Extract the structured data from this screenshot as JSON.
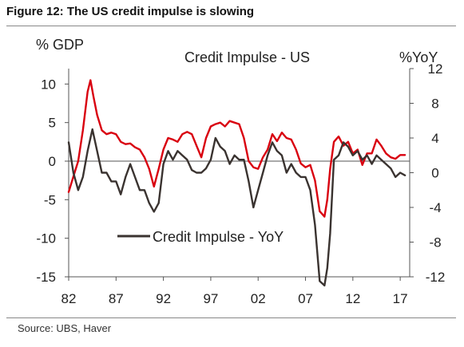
{
  "figure_title": "Figure 12: The US credit impulse is slowing",
  "source": "Source:  UBS, Haver",
  "colors": {
    "red_series": "#d9000f",
    "black_series": "#3a3330",
    "axis": "#555555",
    "rule": "#888888"
  },
  "chart_data": {
    "type": "line",
    "title": "Credit Impulse - US",
    "ylabel_left": "% GDP",
    "ylabel_right": "%YoY",
    "grid": false,
    "legend_placement": "bottom-center",
    "x_axis": {
      "range": [
        1982,
        2018
      ],
      "ticks": [
        1982,
        1987,
        1992,
        1997,
        2002,
        2007,
        2012,
        2017
      ],
      "tick_labels": [
        "82",
        "87",
        "92",
        "97",
        "02",
        "07",
        "12",
        "17"
      ]
    },
    "y_left": {
      "range": [
        -15,
        12
      ],
      "ticks": [
        10,
        5,
        0,
        -5,
        -10,
        -15
      ],
      "tick_labels": [
        "10",
        "5",
        "0",
        "-5",
        "-10",
        "-15"
      ]
    },
    "y_right": {
      "range": [
        -12,
        12
      ],
      "ticks": [
        12,
        8,
        4,
        0,
        -4,
        -8,
        -12
      ],
      "tick_labels": [
        "12",
        "8",
        "4",
        "0",
        "-4",
        "-8",
        "-12"
      ]
    },
    "series": [
      {
        "name": "",
        "axis": "left",
        "color": "#d9000f",
        "x": [
          1982,
          1982.5,
          1983,
          1983.5,
          1984,
          1984.3,
          1984.6,
          1985,
          1985.5,
          1986,
          1986.5,
          1987,
          1987.5,
          1988,
          1988.5,
          1989,
          1989.5,
          1990,
          1990.5,
          1991,
          1991.5,
          1992,
          1992.5,
          1993,
          1993.5,
          1994,
          1994.5,
          1995,
          1995.5,
          1996,
          1996.5,
          1997,
          1997.5,
          1998,
          1998.5,
          1999,
          1999.5,
          2000,
          2000.5,
          2001,
          2001.5,
          2002,
          2002.5,
          2003,
          2003.5,
          2004,
          2004.5,
          2005,
          2005.5,
          2006,
          2006.5,
          2007,
          2007.5,
          2008,
          2008.5,
          2009,
          2009.3,
          2009.6,
          2010,
          2010.5,
          2011,
          2011.5,
          2012,
          2012.5,
          2013,
          2013.5,
          2014,
          2014.5,
          2015,
          2015.5,
          2016,
          2016.5,
          2017,
          2017.5
        ],
        "values": [
          -4,
          -2,
          0,
          4,
          9,
          10.5,
          8.5,
          6,
          4,
          3.5,
          3.7,
          3.5,
          2.5,
          2.2,
          2.3,
          1.8,
          1.5,
          0.5,
          -1,
          -3.3,
          -1,
          1.5,
          3,
          2.8,
          2.5,
          3.5,
          3.8,
          3.5,
          2.0,
          0.5,
          3,
          4.5,
          4.8,
          5,
          4.5,
          5.2,
          5,
          4.8,
          3.0,
          0,
          -0.8,
          -1,
          0.5,
          1.5,
          3.5,
          2.6,
          3.7,
          3.0,
          2.8,
          1.5,
          -0.3,
          -0.8,
          -0.5,
          -2.5,
          -6.5,
          -7.2,
          -5,
          -1,
          2.5,
          3.2,
          2,
          2.5,
          1.0,
          1.5,
          -0.5,
          1.0,
          1.0,
          2.8,
          2.0,
          1.0,
          0.5,
          0.3,
          0.8,
          0.8
        ]
      },
      {
        "name": "Credit Impulse - YoY",
        "axis": "right",
        "color": "#3a3330",
        "x": [
          1982,
          1982.5,
          1983,
          1983.5,
          1984,
          1984.5,
          1985,
          1985.5,
          1986,
          1986.5,
          1987,
          1987.5,
          1988,
          1988.5,
          1989,
          1989.5,
          1990,
          1990.5,
          1991,
          1991.5,
          1992,
          1992.5,
          1993,
          1993.5,
          1994,
          1994.5,
          1995,
          1995.5,
          1996,
          1996.5,
          1997,
          1997.5,
          1998,
          1998.5,
          1999,
          1999.5,
          2000,
          2000.5,
          2001,
          2001.5,
          2002,
          2002.5,
          2003,
          2003.5,
          2004,
          2004.5,
          2005,
          2005.5,
          2006,
          2006.5,
          2007,
          2007.5,
          2008,
          2008.5,
          2009,
          2009.3,
          2009.6,
          2010,
          2010.5,
          2011,
          2011.5,
          2012,
          2012.5,
          2013,
          2013.5,
          2014,
          2014.5,
          2015,
          2015.5,
          2016,
          2016.5,
          2017,
          2017.5
        ],
        "values": [
          3.5,
          0,
          -2,
          -0.5,
          2.5,
          5,
          2.5,
          0,
          0,
          -1,
          -1,
          -2.5,
          -0.5,
          1,
          -0.5,
          -2,
          -2,
          -3.5,
          -4.5,
          -3.5,
          1,
          2.5,
          1.5,
          2.5,
          2,
          1.5,
          0.3,
          0,
          0,
          0.5,
          1.5,
          4,
          3,
          2.5,
          1,
          2,
          1.5,
          1.5,
          -1,
          -4,
          -2,
          0,
          2,
          3.5,
          2.5,
          2,
          0,
          1,
          0,
          -0.5,
          -0.5,
          -2,
          -6,
          -12.5,
          -13,
          -11,
          -7,
          1.5,
          2,
          3.5,
          3,
          2,
          2.5,
          1.5,
          2,
          1,
          2,
          1.5,
          1,
          0.5,
          -0.5,
          0,
          -0.3
        ]
      }
    ]
  }
}
